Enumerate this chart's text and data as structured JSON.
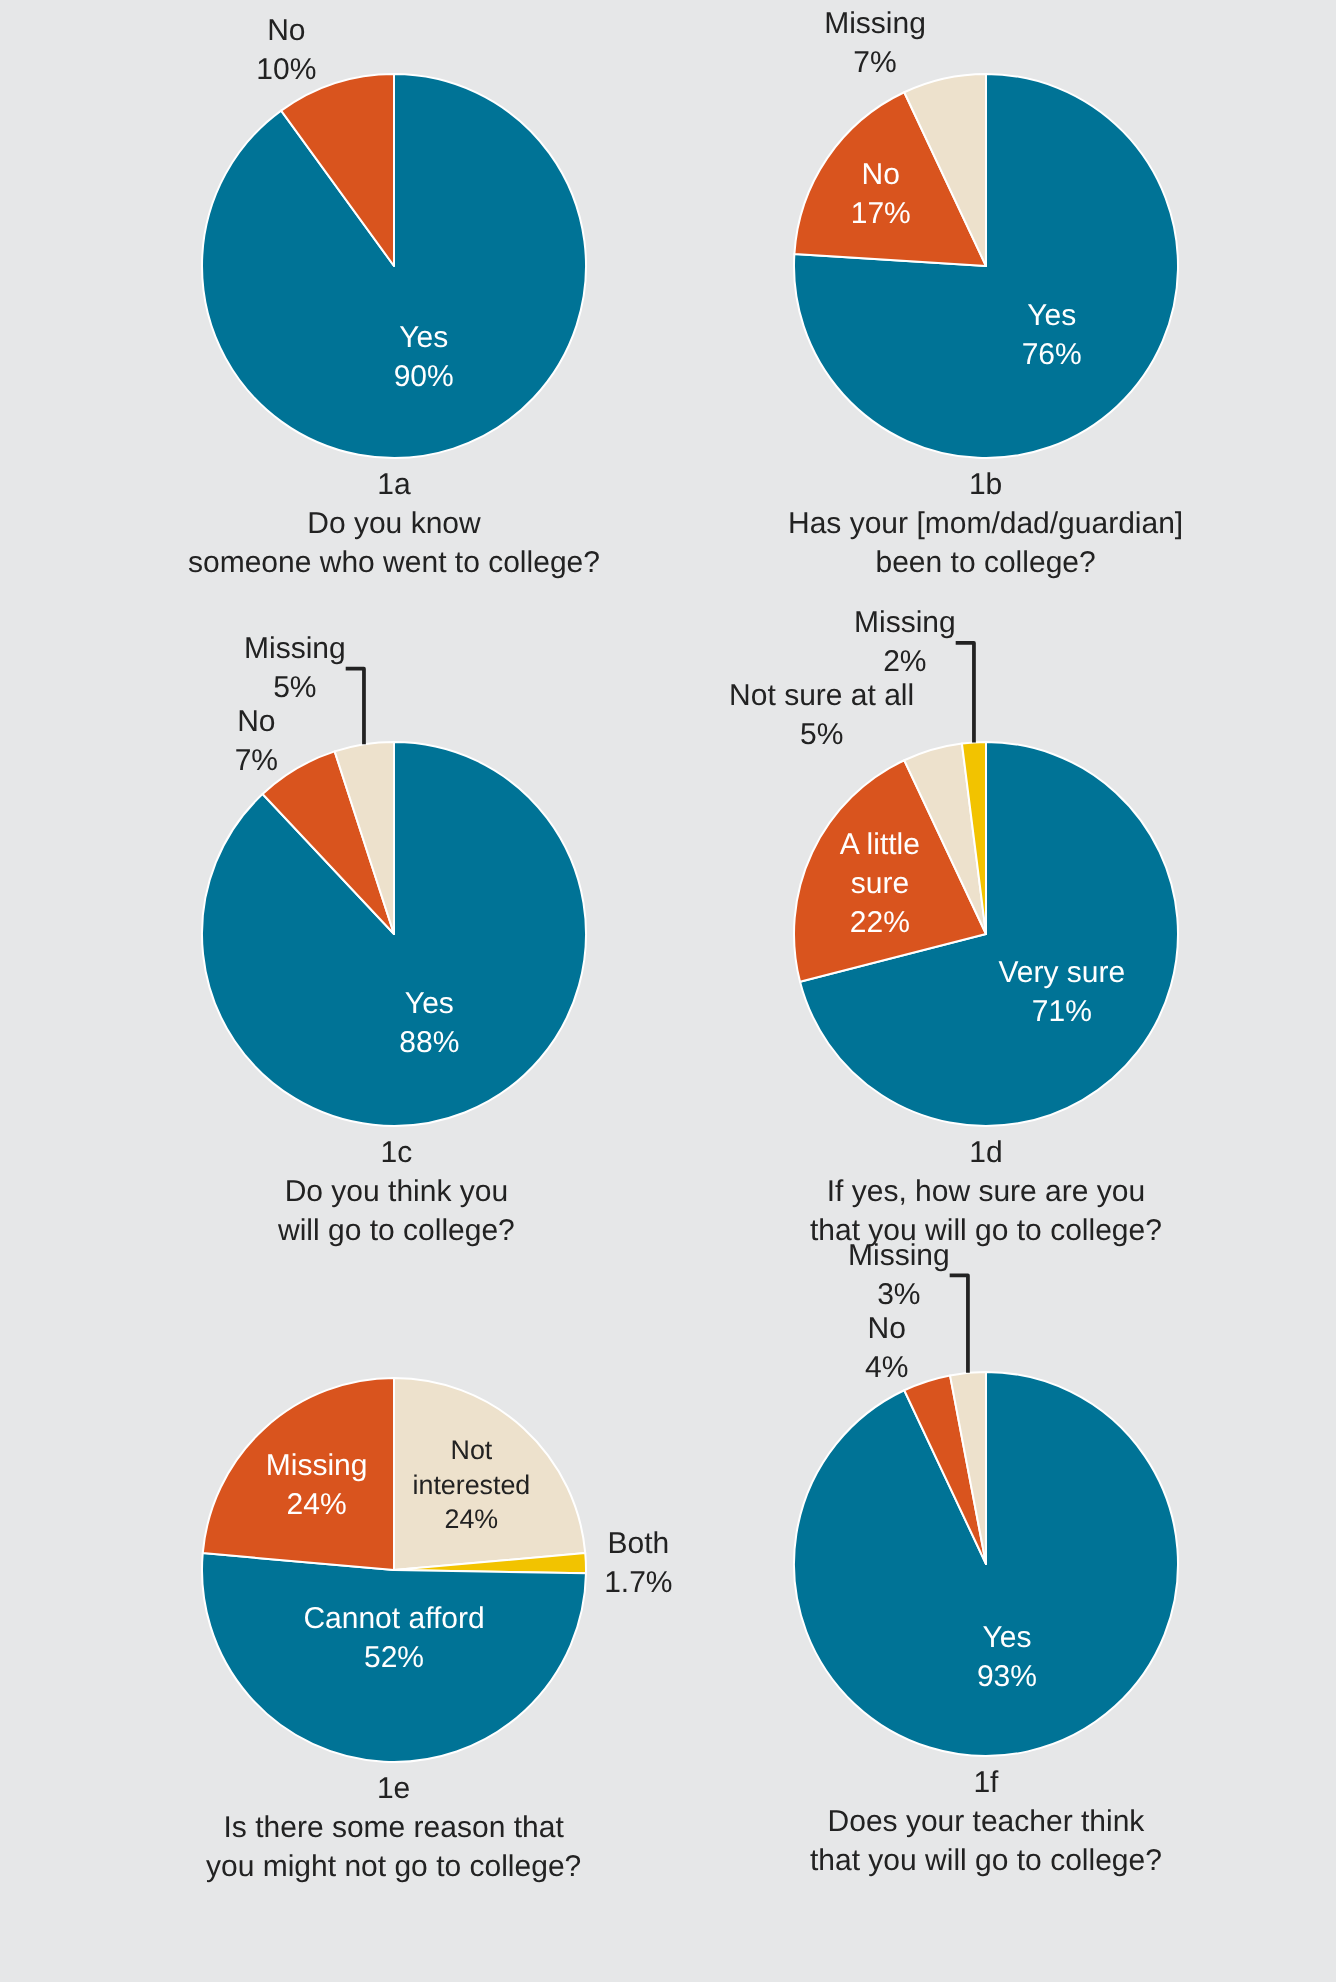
{
  "chart_data": [
    {
      "type": "pie",
      "title": "1a",
      "subtitle": "Do you know\nsomeone who went to college?",
      "categories": [
        "Yes",
        "No"
      ],
      "values": [
        90,
        10
      ],
      "value_labels": [
        "90%",
        "10%"
      ],
      "colors": [
        "#007396",
        "#d9541e"
      ],
      "legend": false
    },
    {
      "type": "pie",
      "title": "1b",
      "subtitle": "Has your [mom/dad/guardian]\nbeen to college?",
      "categories": [
        "Yes",
        "No",
        "Missing"
      ],
      "values": [
        76,
        17,
        7
      ],
      "value_labels": [
        "76%",
        "17%",
        "7%"
      ],
      "colors": [
        "#007396",
        "#d9541e",
        "#ede1cc"
      ],
      "legend": false
    },
    {
      "type": "pie",
      "title": "1c",
      "subtitle": "Do you think you\nwill go to college?",
      "categories": [
        "Yes",
        "No",
        "Missing"
      ],
      "values": [
        88,
        7,
        5
      ],
      "value_labels": [
        "88%",
        "7%",
        "5%"
      ],
      "colors": [
        "#007396",
        "#d9541e",
        "#ede1cc"
      ],
      "legend": false
    },
    {
      "type": "pie",
      "title": "1d",
      "subtitle": "If yes, how sure are you\nthat you will go to college?",
      "categories": [
        "Very sure",
        "A little\nsure",
        "Not sure at all",
        "Missing"
      ],
      "values": [
        71,
        22,
        5,
        2
      ],
      "value_labels": [
        "71%",
        "22%",
        "5%",
        "2%"
      ],
      "colors": [
        "#007396",
        "#d9541e",
        "#ede1cc",
        "#f2c300"
      ],
      "legend": false
    },
    {
      "type": "pie",
      "title": "1e",
      "subtitle": "Is there some reason that\nyou might not go to college?",
      "categories": [
        "Not\ninterested",
        "Both",
        "Cannot afford",
        "Missing"
      ],
      "values": [
        24,
        1.7,
        52,
        24
      ],
      "value_labels": [
        "24%",
        "1.7%",
        "52%",
        "24%"
      ],
      "colors": [
        "#ede1cc",
        "#f2c300",
        "#007396",
        "#d9541e"
      ],
      "legend": false
    },
    {
      "type": "pie",
      "title": "1f",
      "subtitle": "Does your teacher think\nthat you will go to college?",
      "categories": [
        "Yes",
        "No",
        "Missing"
      ],
      "values": [
        93,
        4,
        3
      ],
      "value_labels": [
        "93%",
        "4%",
        "3%"
      ],
      "colors": [
        "#007396",
        "#d9541e",
        "#ede1cc"
      ],
      "legend": false
    }
  ]
}
